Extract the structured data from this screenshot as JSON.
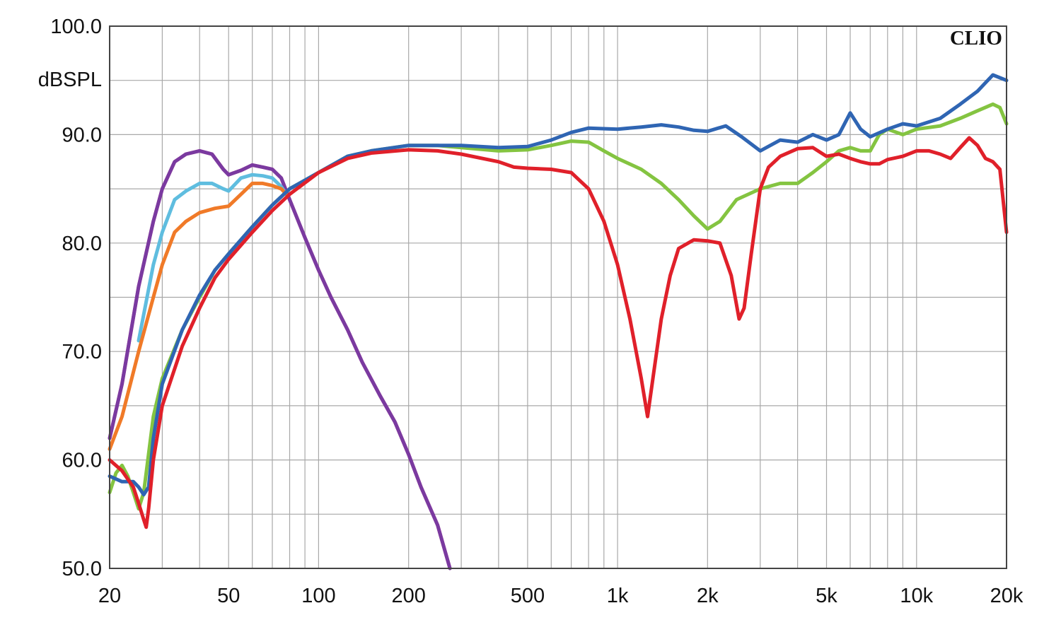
{
  "brand": "CLIO",
  "chart_data": {
    "type": "line",
    "title": "",
    "xlabel": "",
    "ylabel": "dBSPL",
    "xscale": "log",
    "xlim": [
      20,
      20000
    ],
    "ylim": [
      50,
      100
    ],
    "grid": true,
    "x_ticks": [
      {
        "value": 20,
        "label": "20"
      },
      {
        "value": 50,
        "label": "50"
      },
      {
        "value": 100,
        "label": "100"
      },
      {
        "value": 200,
        "label": "200"
      },
      {
        "value": 500,
        "label": "500"
      },
      {
        "value": 1000,
        "label": "1k"
      },
      {
        "value": 2000,
        "label": "2k"
      },
      {
        "value": 5000,
        "label": "5k"
      },
      {
        "value": 10000,
        "label": "10k"
      },
      {
        "value": 20000,
        "label": "20k"
      }
    ],
    "y_ticks": [
      {
        "value": 100,
        "label": "100.0"
      },
      {
        "value": 90,
        "label": "90.0"
      },
      {
        "value": 80,
        "label": "80.0"
      },
      {
        "value": 70,
        "label": "70.0"
      },
      {
        "value": 60,
        "label": "60.0"
      },
      {
        "value": 50,
        "label": "50.0"
      }
    ],
    "series": [
      {
        "color": "#d63a8a",
        "points": [
          [
            20,
            62
          ],
          [
            22,
            67
          ],
          [
            25,
            76
          ],
          [
            28,
            82
          ],
          [
            30,
            85
          ],
          [
            33,
            87.5
          ],
          [
            36,
            88.2
          ],
          [
            40,
            88.5
          ],
          [
            44,
            88.2
          ],
          [
            48,
            86.8
          ],
          [
            50,
            86.3
          ],
          [
            55,
            86.7
          ],
          [
            60,
            87.2
          ],
          [
            65,
            87
          ],
          [
            70,
            86.8
          ],
          [
            75,
            86
          ],
          [
            80,
            84
          ],
          [
            90,
            80.5
          ],
          [
            100,
            77.5
          ],
          [
            110,
            75
          ],
          [
            125,
            72
          ],
          [
            140,
            69
          ],
          [
            160,
            66
          ],
          [
            180,
            63.5
          ],
          [
            200,
            60.5
          ],
          [
            220,
            57.5
          ],
          [
            250,
            54
          ],
          [
            275,
            50
          ]
        ]
      },
      {
        "color": "#7a3aa0",
        "points": [
          [
            20,
            62
          ],
          [
            22,
            67
          ],
          [
            25,
            76
          ],
          [
            28,
            82
          ],
          [
            30,
            85
          ],
          [
            33,
            87.5
          ],
          [
            36,
            88.2
          ],
          [
            40,
            88.5
          ],
          [
            44,
            88.2
          ],
          [
            48,
            86.8
          ],
          [
            50,
            86.3
          ],
          [
            55,
            86.7
          ],
          [
            60,
            87.2
          ],
          [
            65,
            87
          ],
          [
            70,
            86.8
          ],
          [
            75,
            86
          ],
          [
            80,
            84
          ],
          [
            90,
            80.5
          ],
          [
            100,
            77.5
          ],
          [
            110,
            75
          ],
          [
            125,
            72
          ],
          [
            140,
            69
          ],
          [
            160,
            66
          ],
          [
            180,
            63.5
          ],
          [
            200,
            60.5
          ],
          [
            220,
            57.5
          ],
          [
            250,
            54
          ],
          [
            275,
            50
          ]
        ]
      },
      {
        "color": "#5fbddf",
        "points": [
          [
            25,
            71
          ],
          [
            28,
            78
          ],
          [
            30,
            81
          ],
          [
            33,
            84
          ],
          [
            36,
            84.8
          ],
          [
            40,
            85.5
          ],
          [
            44,
            85.5
          ],
          [
            48,
            85
          ],
          [
            50,
            84.8
          ],
          [
            55,
            86
          ],
          [
            60,
            86.3
          ],
          [
            65,
            86.2
          ],
          [
            70,
            86
          ],
          [
            75,
            85.2
          ],
          [
            78,
            84.5
          ]
        ]
      },
      {
        "color": "#f07a28",
        "points": [
          [
            20,
            61
          ],
          [
            22,
            64
          ],
          [
            25,
            70
          ],
          [
            28,
            75
          ],
          [
            30,
            78
          ],
          [
            33,
            81
          ],
          [
            36,
            82
          ],
          [
            40,
            82.8
          ],
          [
            45,
            83.2
          ],
          [
            50,
            83.4
          ],
          [
            55,
            84.5
          ],
          [
            60,
            85.5
          ],
          [
            65,
            85.5
          ],
          [
            70,
            85.3
          ],
          [
            75,
            85
          ],
          [
            78,
            84.5
          ]
        ]
      },
      {
        "color": "#84c441",
        "points": [
          [
            20,
            57
          ],
          [
            21,
            58.8
          ],
          [
            22,
            59.5
          ],
          [
            23,
            58.5
          ],
          [
            24,
            57
          ],
          [
            25,
            55.5
          ],
          [
            26,
            57
          ],
          [
            28,
            64
          ],
          [
            30,
            67.5
          ],
          [
            35,
            72
          ],
          [
            40,
            75
          ],
          [
            45,
            77.5
          ],
          [
            50,
            79
          ],
          [
            60,
            81.5
          ],
          [
            70,
            83.5
          ],
          [
            80,
            85
          ],
          [
            100,
            86.5
          ],
          [
            125,
            88
          ],
          [
            150,
            88.5
          ],
          [
            200,
            89
          ],
          [
            250,
            89
          ],
          [
            300,
            88.8
          ],
          [
            400,
            88.5
          ],
          [
            500,
            88.6
          ],
          [
            600,
            89
          ],
          [
            700,
            89.4
          ],
          [
            800,
            89.3
          ],
          [
            900,
            88.5
          ],
          [
            1000,
            87.8
          ],
          [
            1200,
            86.8
          ],
          [
            1400,
            85.5
          ],
          [
            1600,
            84
          ],
          [
            1800,
            82.5
          ],
          [
            2000,
            81.3
          ],
          [
            2200,
            82
          ],
          [
            2500,
            84
          ],
          [
            3000,
            85
          ],
          [
            3500,
            85.5
          ],
          [
            4000,
            85.5
          ],
          [
            4500,
            86.5
          ],
          [
            5000,
            87.5
          ],
          [
            5500,
            88.5
          ],
          [
            6000,
            88.8
          ],
          [
            6500,
            88.5
          ],
          [
            7000,
            88.5
          ],
          [
            7500,
            90
          ],
          [
            8000,
            90.5
          ],
          [
            9000,
            90
          ],
          [
            10000,
            90.5
          ],
          [
            12000,
            90.8
          ],
          [
            14000,
            91.5
          ],
          [
            16000,
            92.2
          ],
          [
            18000,
            92.8
          ],
          [
            19000,
            92.5
          ],
          [
            20000,
            91
          ]
        ]
      },
      {
        "color": "#2f65b3",
        "points": [
          [
            20,
            58.5
          ],
          [
            22,
            58
          ],
          [
            24,
            58
          ],
          [
            25,
            57.5
          ],
          [
            26,
            56.8
          ],
          [
            27,
            57.5
          ],
          [
            28,
            62
          ],
          [
            30,
            67
          ],
          [
            35,
            72
          ],
          [
            40,
            75.2
          ],
          [
            45,
            77.5
          ],
          [
            50,
            79
          ],
          [
            60,
            81.5
          ],
          [
            70,
            83.5
          ],
          [
            80,
            85
          ],
          [
            100,
            86.5
          ],
          [
            125,
            88
          ],
          [
            150,
            88.5
          ],
          [
            200,
            89
          ],
          [
            250,
            89
          ],
          [
            300,
            89
          ],
          [
            400,
            88.8
          ],
          [
            500,
            88.9
          ],
          [
            600,
            89.5
          ],
          [
            700,
            90.2
          ],
          [
            800,
            90.6
          ],
          [
            1000,
            90.5
          ],
          [
            1200,
            90.7
          ],
          [
            1400,
            90.9
          ],
          [
            1600,
            90.7
          ],
          [
            1800,
            90.4
          ],
          [
            2000,
            90.3
          ],
          [
            2300,
            90.8
          ],
          [
            2600,
            89.8
          ],
          [
            3000,
            88.5
          ],
          [
            3500,
            89.5
          ],
          [
            4000,
            89.3
          ],
          [
            4500,
            90
          ],
          [
            5000,
            89.5
          ],
          [
            5500,
            90
          ],
          [
            6000,
            92
          ],
          [
            6500,
            90.5
          ],
          [
            7000,
            89.8
          ],
          [
            8000,
            90.5
          ],
          [
            9000,
            91
          ],
          [
            10000,
            90.8
          ],
          [
            12000,
            91.5
          ],
          [
            14000,
            92.8
          ],
          [
            16000,
            94
          ],
          [
            18000,
            95.5
          ],
          [
            20000,
            95
          ]
        ]
      },
      {
        "color": "#e0202a",
        "points": [
          [
            20,
            60
          ],
          [
            22,
            59
          ],
          [
            24,
            57.5
          ],
          [
            25,
            56
          ],
          [
            26,
            54.5
          ],
          [
            26.5,
            53.8
          ],
          [
            27,
            55.5
          ],
          [
            28,
            60
          ],
          [
            30,
            65
          ],
          [
            35,
            70.5
          ],
          [
            40,
            74
          ],
          [
            45,
            76.8
          ],
          [
            50,
            78.5
          ],
          [
            60,
            81
          ],
          [
            70,
            83
          ],
          [
            80,
            84.5
          ],
          [
            100,
            86.5
          ],
          [
            125,
            87.8
          ],
          [
            150,
            88.3
          ],
          [
            200,
            88.6
          ],
          [
            250,
            88.5
          ],
          [
            300,
            88.2
          ],
          [
            400,
            87.5
          ],
          [
            450,
            87
          ],
          [
            500,
            86.9
          ],
          [
            600,
            86.8
          ],
          [
            700,
            86.5
          ],
          [
            800,
            85
          ],
          [
            900,
            82
          ],
          [
            1000,
            78
          ],
          [
            1100,
            73
          ],
          [
            1200,
            67.5
          ],
          [
            1260,
            64
          ],
          [
            1320,
            68
          ],
          [
            1400,
            73
          ],
          [
            1500,
            77
          ],
          [
            1600,
            79.5
          ],
          [
            1800,
            80.3
          ],
          [
            2000,
            80.2
          ],
          [
            2200,
            80
          ],
          [
            2400,
            77
          ],
          [
            2550,
            73
          ],
          [
            2650,
            74
          ],
          [
            2800,
            79
          ],
          [
            3000,
            85
          ],
          [
            3200,
            87
          ],
          [
            3500,
            88
          ],
          [
            4000,
            88.7
          ],
          [
            4500,
            88.8
          ],
          [
            5000,
            88
          ],
          [
            5500,
            88.2
          ],
          [
            6000,
            87.8
          ],
          [
            6500,
            87.5
          ],
          [
            7000,
            87.3
          ],
          [
            7500,
            87.3
          ],
          [
            8000,
            87.7
          ],
          [
            9000,
            88
          ],
          [
            10000,
            88.5
          ],
          [
            11000,
            88.5
          ],
          [
            12000,
            88.2
          ],
          [
            13000,
            87.8
          ],
          [
            14000,
            88.8
          ],
          [
            15000,
            89.7
          ],
          [
            16000,
            89
          ],
          [
            17000,
            87.8
          ],
          [
            18000,
            87.5
          ],
          [
            19000,
            86.8
          ],
          [
            20000,
            81
          ]
        ]
      }
    ]
  }
}
